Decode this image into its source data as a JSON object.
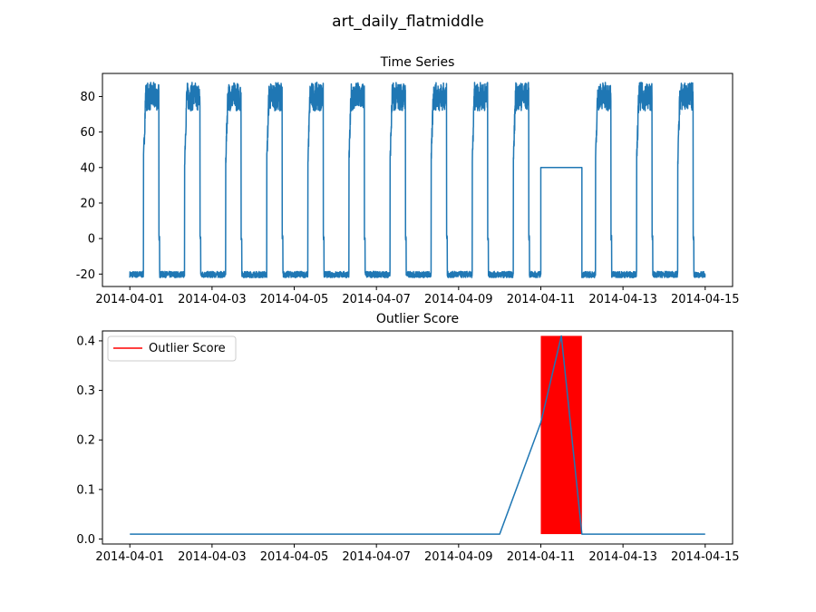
{
  "figure": {
    "suptitle": "art_daily_flatmiddle"
  },
  "chart_data": [
    {
      "type": "line",
      "title": "Time Series",
      "xlabel": "",
      "ylabel": "",
      "x_ticks": [
        "2014-04-01",
        "2014-04-03",
        "2014-04-05",
        "2014-04-07",
        "2014-04-09",
        "2014-04-11",
        "2014-04-13",
        "2014-04-15"
      ],
      "xlim": [
        "2014-03-31T08:00",
        "2014-04-15T16:00"
      ],
      "ylim": [
        -27,
        93
      ],
      "y_ticks": [
        -20,
        0,
        20,
        40,
        60,
        80
      ],
      "grid": false,
      "series": [
        {
          "color": "#1f77b4",
          "daily_pattern": {
            "low_value": -20,
            "high_value": [
              72,
              88
            ],
            "high_start_hour": 8,
            "high_end_hour": 17
          },
          "flat_segment": {
            "start": "2014-04-11T00:00",
            "end": "2014-04-12T00:00",
            "value": 40
          },
          "start": "2014-04-01T00:00",
          "end": "2014-04-15T00:00"
        }
      ]
    },
    {
      "type": "line",
      "title": "Outlier Score",
      "xlabel": "",
      "ylabel": "",
      "x_ticks": [
        "2014-04-01",
        "2014-04-03",
        "2014-04-05",
        "2014-04-07",
        "2014-04-09",
        "2014-04-11",
        "2014-04-13",
        "2014-04-15"
      ],
      "xlim": [
        "2014-03-31T08:00",
        "2014-04-15T16:00"
      ],
      "ylim": [
        -0.01,
        0.42
      ],
      "y_ticks": [
        0.0,
        0.1,
        0.2,
        0.3,
        0.4
      ],
      "y_tick_labels": [
        "0.0",
        "0.1",
        "0.2",
        "0.3",
        "0.4"
      ],
      "grid": false,
      "legend": {
        "placement": "top-left",
        "entries": [
          "Outlier Score"
        ]
      },
      "series": [
        {
          "color": "#1f77b4",
          "x": [
            "2014-04-01",
            "2014-04-02",
            "2014-04-03",
            "2014-04-04",
            "2014-04-05",
            "2014-04-06",
            "2014-04-07",
            "2014-04-08",
            "2014-04-09",
            "2014-04-10",
            "2014-04-11",
            "2014-04-11T12:00",
            "2014-04-12",
            "2014-04-13",
            "2014-04-14",
            "2014-04-15"
          ],
          "y": [
            0.01,
            0.01,
            0.01,
            0.01,
            0.01,
            0.01,
            0.01,
            0.01,
            0.01,
            0.01,
            0.235,
            0.41,
            0.01,
            0.01,
            0.01,
            0.01
          ]
        },
        {
          "name": "Outlier Score",
          "color": "#ff0000",
          "type": "area",
          "x": [
            "2014-04-11",
            "2014-04-12"
          ],
          "y_low": 0.01,
          "y_high": 0.41
        }
      ]
    }
  ]
}
